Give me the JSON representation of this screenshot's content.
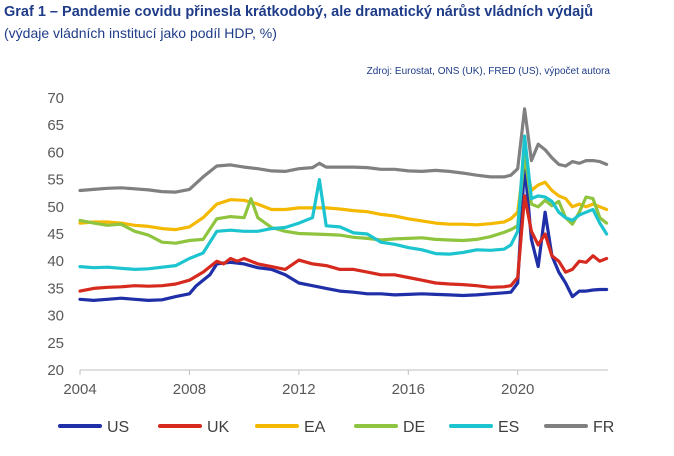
{
  "header": {
    "title": "Graf 1 – Pandemie covidu přinesla krátkodobý, ale dramatický nárůst vládních výdajů",
    "subtitle": "(výdaje vládních institucí jako podíl HDP, %)",
    "source": "Zdroj: Eurostat, ONS (UK), FRED (US), výpočet autora"
  },
  "chart_data": {
    "type": "line",
    "title": "Graf 1 – Pandemie covidu přinesla krátkodobý, ale dramatický nárůst vládních výdajů",
    "subtitle": "(výdaje vládních institucí jako podíl HDP, %)",
    "xlabel": "",
    "ylabel": "",
    "xlim": [
      2004,
      2023.3
    ],
    "ylim": [
      20,
      70
    ],
    "x_ticks": [
      "2004",
      "2008",
      "2012",
      "2016",
      "2020"
    ],
    "y_ticks": [
      "20",
      "25",
      "30",
      "35",
      "40",
      "45",
      "50",
      "55",
      "60",
      "65",
      "70"
    ],
    "grid": false,
    "legend_position": "bottom",
    "series": [
      {
        "name": "US",
        "color": "#1f2fa8",
        "x": [
          2004,
          2004.5,
          2005,
          2005.5,
          2006,
          2006.5,
          2007,
          2007.5,
          2008,
          2008.25,
          2008.5,
          2008.75,
          2009,
          2009.5,
          2010,
          2010.5,
          2011,
          2011.5,
          2012,
          2012.5,
          2013,
          2013.5,
          2014,
          2014.5,
          2015,
          2015.5,
          2016,
          2016.5,
          2017,
          2017.5,
          2018,
          2018.5,
          2019,
          2019.5,
          2019.75,
          2020,
          2020.25,
          2020.5,
          2020.75,
          2021,
          2021.25,
          2021.5,
          2021.75,
          2022,
          2022.25,
          2022.5,
          2022.75,
          2023,
          2023.25
        ],
        "values": [
          33,
          32.8,
          33,
          33.2,
          33,
          32.8,
          32.9,
          33.5,
          34,
          35.5,
          36.5,
          37.5,
          39.5,
          39.8,
          39.5,
          38.8,
          38.5,
          37.5,
          36,
          35.5,
          35,
          34.5,
          34.3,
          34,
          34,
          33.8,
          33.9,
          34,
          33.9,
          33.8,
          33.7,
          33.8,
          34,
          34.2,
          34.3,
          36,
          58,
          44,
          39,
          49,
          41,
          38,
          36,
          33.5,
          34.5,
          34.5,
          34.7,
          34.8,
          34.8
        ]
      },
      {
        "name": "UK",
        "color": "#d62a1e",
        "x": [
          2004,
          2004.5,
          2005,
          2005.5,
          2006,
          2006.5,
          2007,
          2007.5,
          2008,
          2008.5,
          2009,
          2009.25,
          2009.5,
          2009.75,
          2010,
          2010.5,
          2011,
          2011.5,
          2012,
          2012.5,
          2013,
          2013.5,
          2014,
          2014.5,
          2015,
          2015.5,
          2016,
          2016.5,
          2017,
          2017.5,
          2018,
          2018.5,
          2019,
          2019.5,
          2019.75,
          2020,
          2020.25,
          2020.5,
          2020.75,
          2021,
          2021.25,
          2021.5,
          2021.75,
          2022,
          2022.25,
          2022.5,
          2022.75,
          2023,
          2023.25
        ],
        "values": [
          34.5,
          35,
          35.2,
          35.3,
          35.5,
          35.4,
          35.5,
          35.8,
          36.5,
          38,
          40,
          39.5,
          40.5,
          40,
          40.5,
          39.5,
          39,
          38.5,
          40.2,
          39.5,
          39.2,
          38.5,
          38.5,
          38,
          37.5,
          37.5,
          37,
          36.5,
          36,
          35.8,
          35.7,
          35.5,
          35.2,
          35.3,
          35.5,
          37,
          52,
          45.5,
          43,
          45,
          41,
          40,
          38,
          38.5,
          40,
          39.8,
          41,
          40,
          40.5
        ]
      },
      {
        "name": "EA",
        "color": "#f5b800",
        "x": [
          2004,
          2004.5,
          2005,
          2005.5,
          2006,
          2006.5,
          2007,
          2007.5,
          2008,
          2008.5,
          2009,
          2009.5,
          2010,
          2010.5,
          2011,
          2011.5,
          2012,
          2012.5,
          2013,
          2013.5,
          2014,
          2014.5,
          2015,
          2015.5,
          2016,
          2016.5,
          2017,
          2017.5,
          2018,
          2018.5,
          2019,
          2019.5,
          2019.75,
          2020,
          2020.25,
          2020.5,
          2020.75,
          2021,
          2021.25,
          2021.5,
          2021.75,
          2022,
          2022.25,
          2022.5,
          2022.75,
          2023,
          2023.25
        ],
        "values": [
          47,
          47.2,
          47.2,
          47.0,
          46.6,
          46.4,
          46.0,
          45.8,
          46.3,
          48,
          50.5,
          51.3,
          51.2,
          50.5,
          49.5,
          49.5,
          49.8,
          49.8,
          49.8,
          49.6,
          49.3,
          49.1,
          48.6,
          48.3,
          47.8,
          47.4,
          47.0,
          46.8,
          46.8,
          46.7,
          46.9,
          47.2,
          47.8,
          49,
          59,
          53,
          54,
          54.5,
          53,
          52,
          51.5,
          50,
          50.5,
          50,
          50.5,
          50,
          49.5
        ]
      },
      {
        "name": "DE",
        "color": "#8fc43f",
        "x": [
          2004,
          2004.5,
          2005,
          2005.5,
          2006,
          2006.5,
          2007,
          2007.5,
          2008,
          2008.5,
          2009,
          2009.5,
          2010,
          2010.25,
          2010.5,
          2011,
          2011.5,
          2012,
          2012.5,
          2013,
          2013.5,
          2014,
          2014.5,
          2015,
          2015.5,
          2016,
          2016.5,
          2017,
          2017.5,
          2018,
          2018.5,
          2019,
          2019.5,
          2019.75,
          2020,
          2020.25,
          2020.5,
          2020.75,
          2021,
          2021.25,
          2021.5,
          2021.75,
          2022,
          2022.25,
          2022.5,
          2022.75,
          2023,
          2023.25
        ],
        "values": [
          47.5,
          47,
          46.6,
          46.8,
          45.5,
          44.8,
          43.5,
          43.3,
          43.8,
          44,
          47.8,
          48.2,
          48,
          51.5,
          48,
          46.2,
          45.5,
          45.1,
          45.0,
          44.9,
          44.8,
          44.4,
          44.2,
          43.9,
          44.1,
          44.2,
          44.3,
          44.0,
          43.9,
          43.8,
          44.0,
          44.5,
          45.3,
          45.8,
          46.5,
          60,
          50.5,
          50,
          51.2,
          50.2,
          51,
          48,
          46.8,
          49,
          51.8,
          51.5,
          48,
          47
        ]
      },
      {
        "name": "ES",
        "color": "#1cc4cf",
        "x": [
          2004,
          2004.5,
          2005,
          2005.5,
          2006,
          2006.5,
          2007,
          2007.5,
          2008,
          2008.5,
          2009,
          2009.5,
          2010,
          2010.5,
          2011,
          2011.5,
          2012,
          2012.5,
          2012.75,
          2013,
          2013.5,
          2014,
          2014.5,
          2015,
          2015.5,
          2016,
          2016.5,
          2017,
          2017.5,
          2018,
          2018.5,
          2019,
          2019.5,
          2019.75,
          2020,
          2020.25,
          2020.5,
          2020.75,
          2021,
          2021.25,
          2021.5,
          2021.75,
          2022,
          2022.25,
          2022.5,
          2022.75,
          2023,
          2023.25
        ],
        "values": [
          39,
          38.8,
          38.9,
          38.7,
          38.5,
          38.6,
          38.9,
          39.2,
          40.5,
          41.5,
          45.5,
          45.7,
          45.5,
          45.5,
          46,
          46.2,
          47,
          48,
          55,
          46.5,
          46.3,
          45.2,
          45,
          43.5,
          43.1,
          42.5,
          42.1,
          41.4,
          41.3,
          41.6,
          42.1,
          42.0,
          42.2,
          43,
          45.5,
          63,
          51.5,
          52,
          51.8,
          51,
          49,
          48,
          47.5,
          48.5,
          49,
          49.5,
          47,
          45
        ]
      },
      {
        "name": "FR",
        "color": "#808080",
        "x": [
          2004,
          2004.5,
          2005,
          2005.5,
          2006,
          2006.5,
          2007,
          2007.5,
          2008,
          2008.5,
          2009,
          2009.5,
          2010,
          2010.5,
          2011,
          2011.5,
          2012,
          2012.5,
          2012.75,
          2013,
          2013.5,
          2014,
          2014.5,
          2015,
          2015.5,
          2016,
          2016.5,
          2017,
          2017.5,
          2018,
          2018.5,
          2019,
          2019.5,
          2019.75,
          2020,
          2020.25,
          2020.5,
          2020.75,
          2021,
          2021.25,
          2021.5,
          2021.75,
          2022,
          2022.25,
          2022.5,
          2022.75,
          2023,
          2023.25
        ],
        "values": [
          53,
          53.2,
          53.4,
          53.5,
          53.3,
          53.1,
          52.8,
          52.7,
          53.2,
          55.5,
          57.5,
          57.7,
          57.3,
          57,
          56.6,
          56.5,
          57.0,
          57.2,
          58,
          57.3,
          57.3,
          57.3,
          57.2,
          56.9,
          56.9,
          56.6,
          56.5,
          56.7,
          56.5,
          56.2,
          55.8,
          55.5,
          55.5,
          55.8,
          57,
          68,
          58.5,
          61.5,
          60.5,
          59,
          57.8,
          57.5,
          58.3,
          58.0,
          58.5,
          58.5,
          58.3,
          57.8
        ]
      }
    ]
  }
}
